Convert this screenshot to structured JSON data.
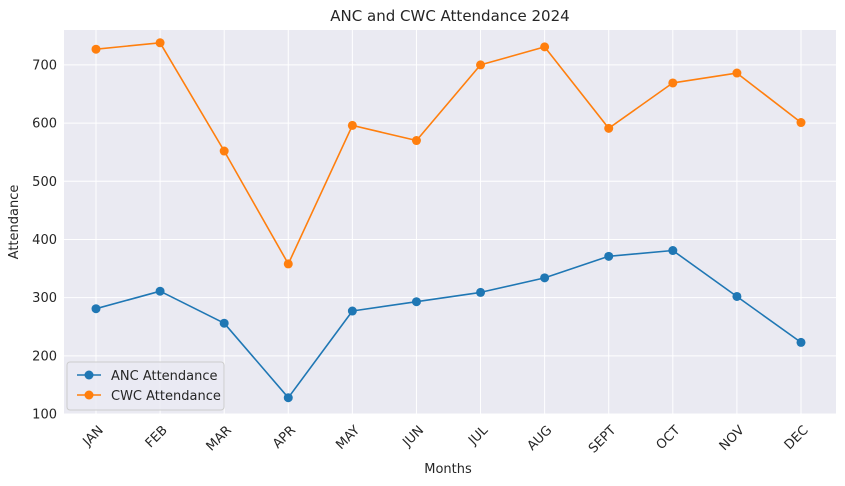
{
  "chart_data": {
    "type": "line",
    "title": "ANC and CWC Attendance 2024",
    "xlabel": "Months",
    "ylabel": "Attendance",
    "categories": [
      "JAN",
      "FEB",
      "MAR",
      "APR",
      "MAY",
      "JUN",
      "JUL",
      "AUG",
      "SEPT",
      "OCT",
      "NOV",
      "DEC"
    ],
    "ylim": [
      100,
      760
    ],
    "yticks": [
      100,
      200,
      300,
      400,
      500,
      600,
      700
    ],
    "grid": true,
    "legend_position": "lower-left",
    "series": [
      {
        "name": "ANC Attendance",
        "color": "#1f77b4",
        "marker": "circle",
        "values": [
          281,
          311,
          256,
          128,
          277,
          293,
          309,
          334,
          371,
          381,
          302,
          223
        ]
      },
      {
        "name": "CWC Attendance",
        "color": "#ff7f0e",
        "marker": "circle",
        "values": [
          727,
          738,
          552,
          358,
          596,
          570,
          700,
          731,
          591,
          669,
          686,
          601
        ]
      }
    ]
  }
}
